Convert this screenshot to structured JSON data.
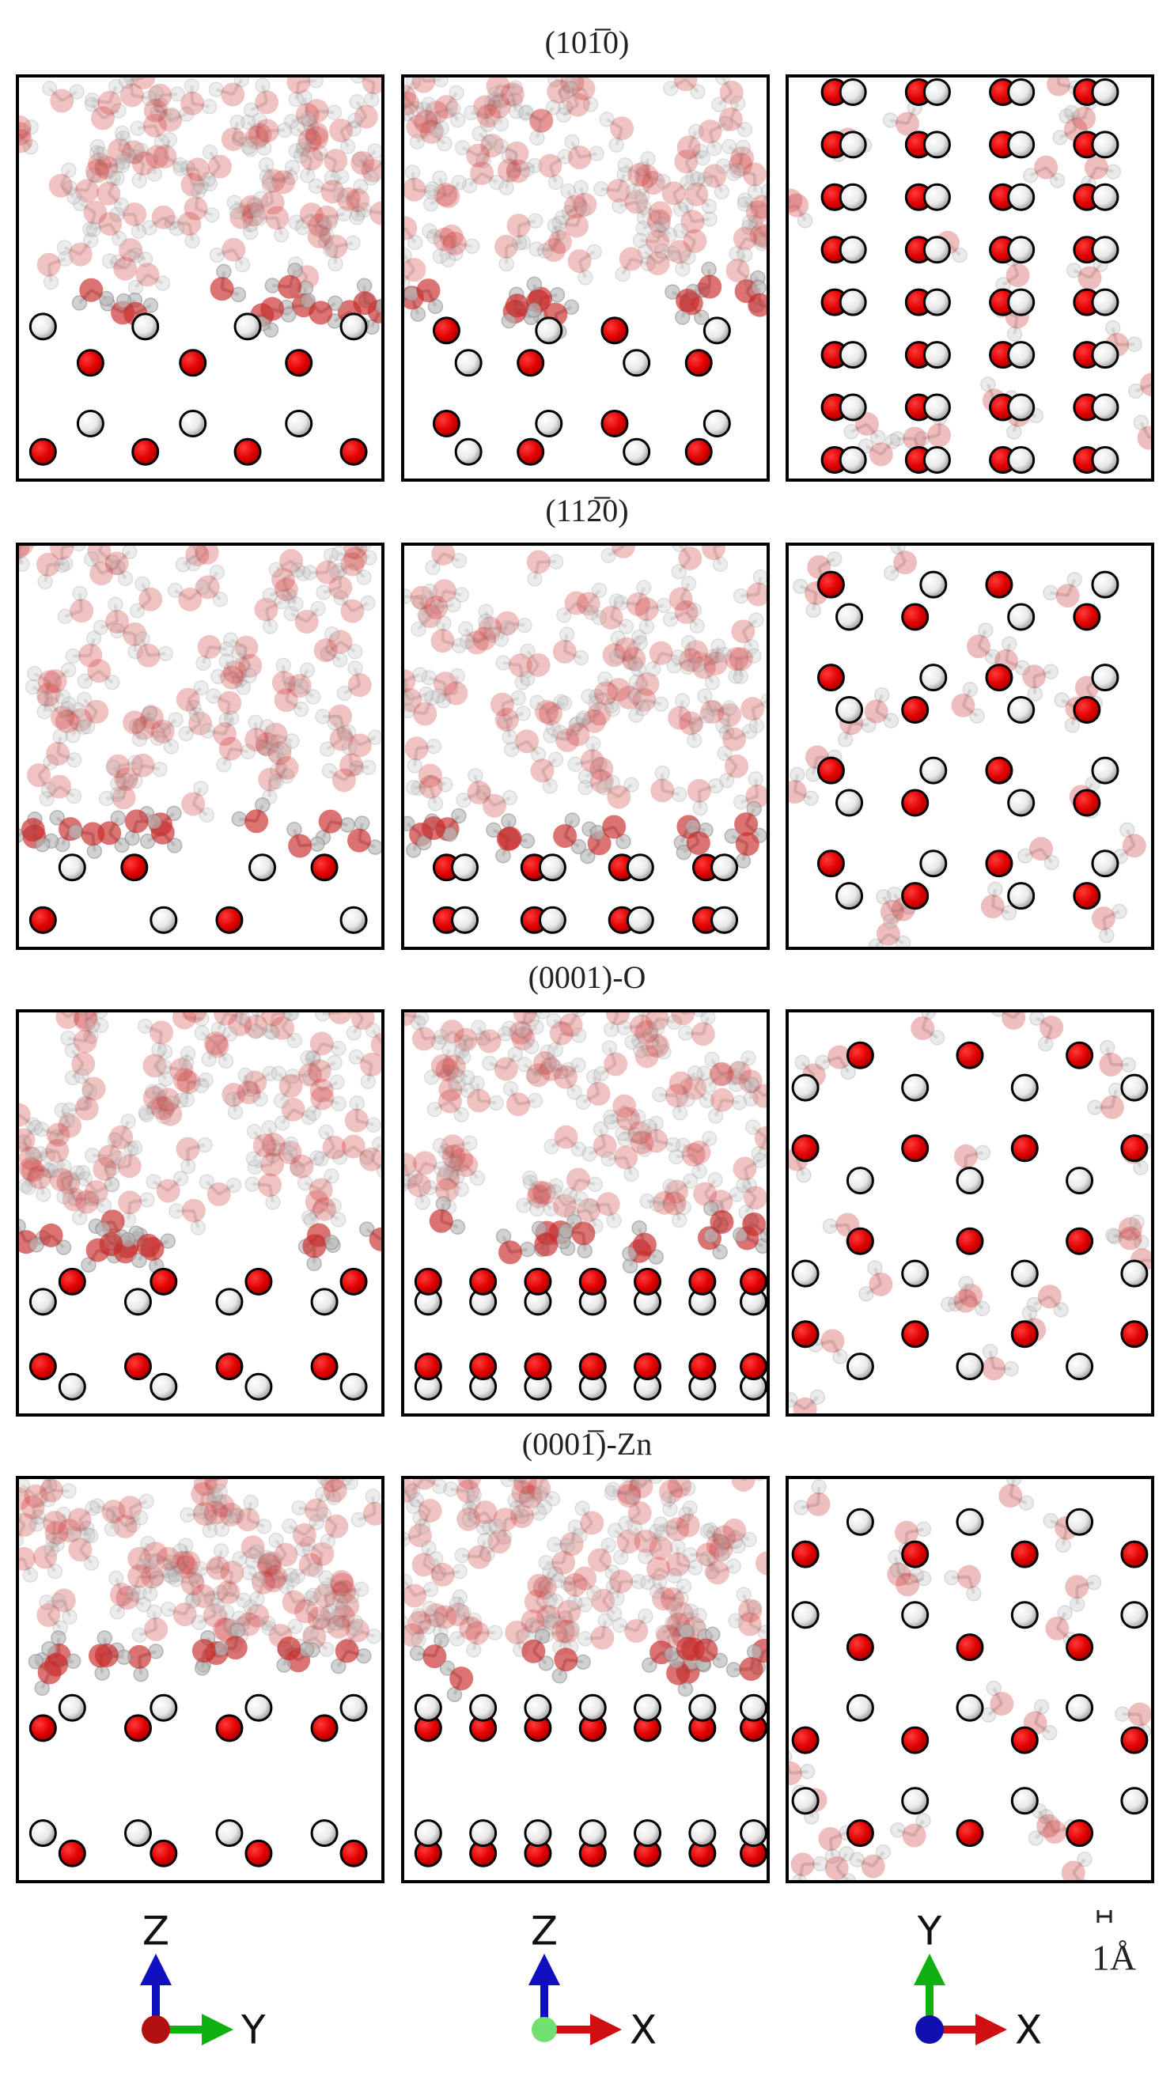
{
  "figure": {
    "rows": [
      {
        "title": "(101̅0)"
      },
      {
        "title": "(112̅0)"
      },
      {
        "title": "(0001)-O"
      },
      {
        "title": "(0001̅)-Zn"
      }
    ],
    "axes": [
      {
        "vertical": "Z",
        "horizontal": "Y"
      },
      {
        "vertical": "Z",
        "horizontal": "X"
      },
      {
        "vertical": "Y",
        "horizontal": "X"
      }
    ],
    "scale_bar": "1Å"
  }
}
